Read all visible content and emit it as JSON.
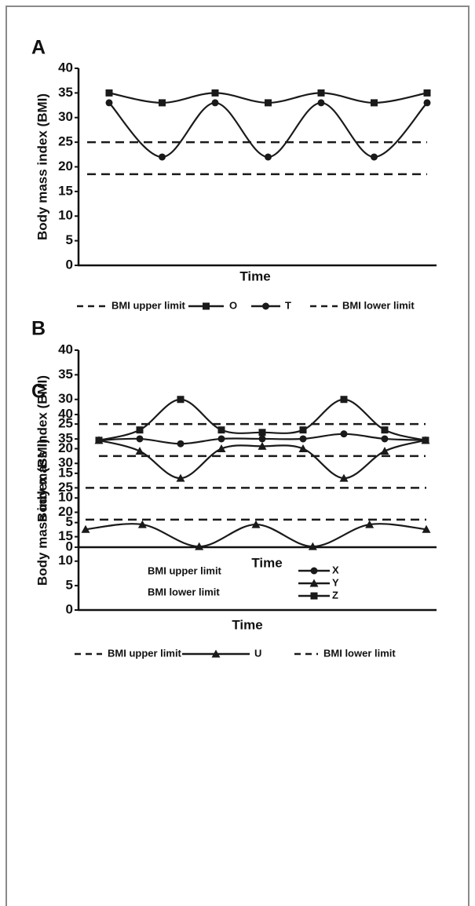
{
  "chart_data": [
    {
      "type": "line",
      "label": "A",
      "ylabel": "Body mass index (BMI)",
      "xlabel": "Time",
      "categories": [
        null,
        null,
        null,
        null,
        null,
        null,
        null
      ],
      "ylim": [
        0,
        40
      ],
      "yticks": [
        0,
        5,
        10,
        15,
        20,
        25,
        30,
        35,
        40
      ],
      "series": [
        {
          "name": "BMI upper limit",
          "color": "#1a1a1a",
          "dashed": true,
          "marker": "none",
          "values": [
            25,
            25,
            25,
            25,
            25,
            25,
            25
          ]
        },
        {
          "name": "O",
          "color": "#1a1a1a",
          "dashed": false,
          "marker": "square",
          "values": [
            35,
            33,
            35,
            33,
            35,
            33,
            35
          ]
        },
        {
          "name": "T",
          "color": "#1a1a1a",
          "dashed": false,
          "marker": "circle",
          "values": [
            33,
            22,
            33,
            22,
            33,
            22,
            33
          ]
        },
        {
          "name": "BMI lower limit",
          "color": "#1a1a1a",
          "dashed": true,
          "marker": "none",
          "values": [
            18.5,
            18.5,
            18.5,
            18.5,
            18.5,
            18.5,
            18.5
          ]
        }
      ]
    },
    {
      "type": "line",
      "label": "B",
      "ylabel": "Body mass index (BMI)",
      "xlabel": "Time",
      "categories": [
        null,
        null,
        null,
        null,
        null,
        null,
        null,
        null,
        null
      ],
      "ylim": [
        0,
        40
      ],
      "yticks": [
        0,
        5,
        10,
        15,
        20,
        25,
        30,
        35,
        40
      ],
      "series": [
        {
          "name": "BMI upper limit",
          "color": "#1a1a1a",
          "dashed": true,
          "marker": "none",
          "values": [
            25,
            25,
            25,
            25,
            25,
            25,
            25,
            25,
            25
          ]
        },
        {
          "name": "BMI lower limit",
          "color": "#1a1a1a",
          "dashed": true,
          "marker": "none",
          "values": [
            18.5,
            18.5,
            18.5,
            18.5,
            18.5,
            18.5,
            18.5,
            18.5,
            18.5
          ]
        },
        {
          "name": "X",
          "color": "#1a1a1a",
          "dashed": false,
          "marker": "circle",
          "values": [
            21.7,
            22,
            21,
            22,
            22,
            22,
            23,
            22,
            21.7
          ]
        },
        {
          "name": "Y",
          "color": "#1a1a1a",
          "dashed": false,
          "marker": "triangle",
          "values": [
            21.7,
            19.5,
            14,
            20,
            20.5,
            20,
            14,
            19.5,
            21.7
          ]
        },
        {
          "name": "Z",
          "color": "#1a1a1a",
          "dashed": false,
          "marker": "square",
          "values": [
            21.7,
            23.8,
            30,
            23.8,
            23.3,
            23.8,
            30,
            23.8,
            21.7
          ]
        }
      ]
    },
    {
      "type": "line",
      "label": "C",
      "ylabel": "Body mass index (BMI)",
      "xlabel": "Time",
      "categories": [
        null,
        null,
        null,
        null,
        null,
        null,
        null
      ],
      "ylim": [
        0,
        40
      ],
      "yticks": [
        0,
        5,
        10,
        15,
        20,
        25,
        30,
        35,
        40
      ],
      "series": [
        {
          "name": "BMI upper limit",
          "color": "#1a1a1a",
          "dashed": true,
          "marker": "none",
          "values": [
            25,
            25,
            25,
            25,
            25,
            25,
            25
          ]
        },
        {
          "name": "U",
          "color": "#1a1a1a",
          "dashed": false,
          "marker": "triangle",
          "values": [
            16.5,
            17.5,
            13,
            17.5,
            13,
            17.5,
            16.5
          ]
        },
        {
          "name": "BMI lower limit",
          "color": "#1a1a1a",
          "dashed": true,
          "marker": "none",
          "values": [
            18.5,
            18.5,
            18.5,
            18.5,
            18.5,
            18.5,
            18.5
          ]
        }
      ]
    }
  ]
}
